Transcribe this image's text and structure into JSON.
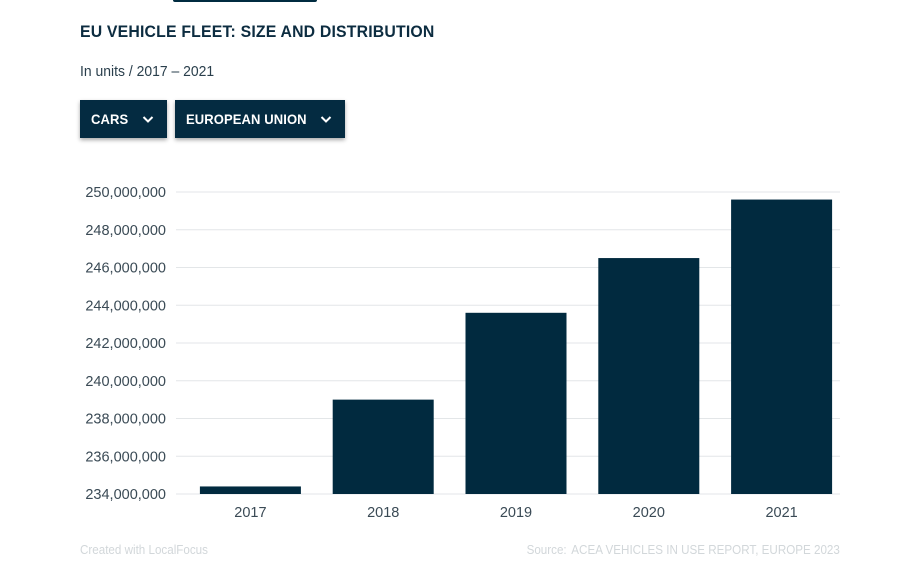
{
  "title": "EU VEHICLE FLEET: SIZE AND DISTRIBUTION",
  "subtitle": "In units / 2017 – 2021",
  "filters": {
    "vehicle_type": "CARS",
    "region": "EUROPEAN UNION"
  },
  "icons": {
    "dropdown_chevron": "chevron-down-icon"
  },
  "colors": {
    "bar": "#012a3f",
    "grid": "#e3e6e8",
    "dropdown_bg": "#042b41"
  },
  "footer": {
    "credit": "Created with LocalFocus",
    "source_label": "Source:",
    "source_text": "ACEA VEHICLES IN USE REPORT, EUROPE 2023"
  },
  "chart_data": {
    "type": "bar",
    "title": "EU VEHICLE FLEET: SIZE AND DISTRIBUTION",
    "subtitle": "In units / 2017 – 2021",
    "categories": [
      "2017",
      "2018",
      "2019",
      "2020",
      "2021"
    ],
    "values": [
      234400000,
      239000000,
      243600000,
      246500000,
      249600000
    ],
    "xlabel": "",
    "ylabel": "",
    "ylim": [
      234000000,
      250000000
    ],
    "yticks": [
      234000000,
      236000000,
      238000000,
      240000000,
      242000000,
      244000000,
      246000000,
      248000000,
      250000000
    ],
    "ytick_labels": [
      "234,000,000",
      "236,000,000",
      "238,000,000",
      "240,000,000",
      "242,000,000",
      "244,000,000",
      "246,000,000",
      "248,000,000",
      "250,000,000"
    ],
    "grid": true,
    "legend": "none"
  }
}
